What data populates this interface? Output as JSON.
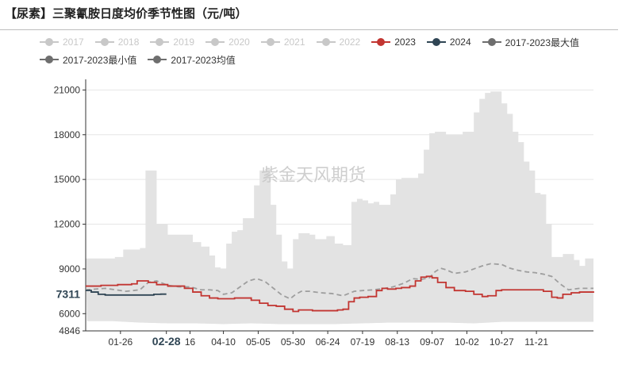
{
  "title": "【尿素】三聚氰胺日度均价季节性图（元/吨）",
  "legend": [
    {
      "label": "2017",
      "color": "#c8c8c8",
      "active": false
    },
    {
      "label": "2018",
      "color": "#c8c8c8",
      "active": false
    },
    {
      "label": "2019",
      "color": "#c8c8c8",
      "active": false
    },
    {
      "label": "2020",
      "color": "#c8c8c8",
      "active": false
    },
    {
      "label": "2021",
      "color": "#c8c8c8",
      "active": false
    },
    {
      "label": "2022",
      "color": "#c8c8c8",
      "active": false
    },
    {
      "label": "2023",
      "color": "#c23531",
      "active": true
    },
    {
      "label": "2024",
      "color": "#2f4554",
      "active": true
    },
    {
      "label": "2017-2023最大值",
      "color": "#6e6e6e",
      "active": true
    },
    {
      "label": "2017-2023最小值",
      "color": "#6e6e6e",
      "active": true
    },
    {
      "label": "2017-2023均值",
      "color": "#6e6e6e",
      "active": true
    }
  ],
  "watermark": "紫金天风期货",
  "chart_data": {
    "type": "line",
    "title": "【尿素】三聚氰胺日度均价季节性图（元/吨）",
    "xlabel": "",
    "ylabel": "",
    "ylim": [
      4846,
      21500
    ],
    "yticks": [
      4846,
      6000,
      9000,
      12000,
      15000,
      18000,
      21000
    ],
    "xlim_days": [
      1,
      366
    ],
    "x_ticks": [
      {
        "day": 26,
        "label": "01-26"
      },
      {
        "day": 59,
        "label": "02-28",
        "bold": true
      },
      {
        "day": 76,
        "label": "16"
      },
      {
        "day": 100,
        "label": "04-10"
      },
      {
        "day": 125,
        "label": "05-05"
      },
      {
        "day": 150,
        "label": "05-30"
      },
      {
        "day": 175,
        "label": "06-24"
      },
      {
        "day": 200,
        "label": "07-19"
      },
      {
        "day": 225,
        "label": "08-13"
      },
      {
        "day": 250,
        "label": "09-07"
      },
      {
        "day": 275,
        "label": "10-02"
      },
      {
        "day": 300,
        "label": "10-27"
      },
      {
        "day": 325,
        "label": "11-21"
      }
    ],
    "current_value_label": "7311",
    "current_value": 7311,
    "grid": true,
    "series": [
      {
        "name": "2017-2023最大值",
        "kind": "upper_band",
        "x": [
          1,
          8,
          15,
          22,
          28,
          32,
          36,
          40,
          44,
          48,
          52,
          60,
          66,
          72,
          78,
          84,
          90,
          94,
          98,
          102,
          106,
          110,
          114,
          118,
          122,
          126,
          130,
          134,
          138,
          142,
          146,
          150,
          154,
          158,
          162,
          166,
          170,
          174,
          180,
          186,
          192,
          196,
          200,
          204,
          208,
          212,
          216,
          220,
          224,
          228,
          232,
          236,
          240,
          244,
          248,
          252,
          256,
          260,
          264,
          268,
          272,
          276,
          280,
          284,
          288,
          292,
          296,
          300,
          304,
          308,
          312,
          316,
          320,
          324,
          328,
          332,
          336,
          340,
          344,
          348,
          352,
          356,
          360,
          366
        ],
        "y": [
          9700,
          9700,
          9700,
          9800,
          10300,
          10300,
          10300,
          10400,
          15600,
          15600,
          12000,
          11300,
          11300,
          11300,
          10800,
          10500,
          9900,
          9100,
          9000,
          10700,
          11500,
          11600,
          12400,
          12400,
          14600,
          15600,
          15700,
          13300,
          11300,
          9500,
          9000,
          11000,
          11400,
          11400,
          11300,
          11000,
          11000,
          11200,
          10700,
          10600,
          13500,
          13700,
          13600,
          13400,
          13500,
          13300,
          13300,
          14000,
          15000,
          15100,
          15100,
          15100,
          15400,
          17000,
          18100,
          18200,
          18200,
          18000,
          18000,
          18000,
          18200,
          18200,
          19500,
          20400,
          20800,
          20900,
          20900,
          20100,
          19400,
          18200,
          17500,
          16200,
          15600,
          14100,
          14000,
          12000,
          9800,
          9800,
          10000,
          10000,
          9600,
          9200,
          9700,
          9700
        ]
      },
      {
        "name": "2017-2023最小值",
        "kind": "lower_band",
        "x": [
          1,
          20,
          40,
          60,
          80,
          100,
          120,
          140,
          160,
          180,
          200,
          220,
          240,
          260,
          280,
          300,
          320,
          340,
          366
        ],
        "y": [
          5500,
          5500,
          5400,
          5350,
          5350,
          5300,
          5350,
          5300,
          5300,
          5300,
          5350,
          5400,
          5400,
          5400,
          5350,
          5450,
          5450,
          5450,
          5450
        ]
      },
      {
        "name": "2017-2023均值",
        "kind": "dashed",
        "x": [
          1,
          15,
          30,
          40,
          46,
          52,
          60,
          68,
          76,
          84,
          90,
          96,
          100,
          106,
          112,
          118,
          124,
          130,
          136,
          142,
          148,
          152,
          156,
          162,
          170,
          178,
          186,
          194,
          200,
          208,
          216,
          222,
          230,
          236,
          242,
          248,
          252,
          256,
          260,
          266,
          274,
          280,
          286,
          292,
          300,
          306,
          312,
          318,
          324,
          330,
          336,
          342,
          348,
          356,
          366
        ],
        "y": [
          7600,
          7700,
          7500,
          7600,
          8100,
          8200,
          7900,
          7800,
          7800,
          7600,
          7600,
          7550,
          7300,
          7400,
          7800,
          8200,
          8350,
          8150,
          7700,
          7250,
          7000,
          7300,
          7500,
          7500,
          7400,
          7350,
          7200,
          7500,
          7550,
          7600,
          7700,
          7800,
          8050,
          8350,
          8300,
          8400,
          8800,
          9050,
          8950,
          8700,
          8800,
          9000,
          9200,
          9350,
          9300,
          9050,
          8900,
          8800,
          8750,
          8650,
          8500,
          8000,
          7600,
          7700,
          7700
        ]
      },
      {
        "name": "2023",
        "kind": "solid",
        "color": "#c23531",
        "x": [
          1,
          12,
          24,
          34,
          38,
          46,
          52,
          60,
          66,
          72,
          78,
          84,
          90,
          96,
          102,
          108,
          114,
          120,
          126,
          132,
          138,
          144,
          150,
          154,
          158,
          164,
          170,
          176,
          182,
          186,
          190,
          194,
          198,
          204,
          210,
          214,
          218,
          224,
          228,
          234,
          238,
          242,
          246,
          250,
          254,
          260,
          266,
          274,
          280,
          286,
          290,
          296,
          300,
          306,
          312,
          318,
          324,
          330,
          336,
          340,
          344,
          350,
          356,
          366
        ],
        "y": [
          7850,
          7900,
          7950,
          8000,
          8200,
          8100,
          7950,
          7850,
          7850,
          7700,
          7450,
          7200,
          7050,
          7000,
          7000,
          7050,
          7050,
          6900,
          6700,
          6550,
          6500,
          6300,
          6150,
          6250,
          6250,
          6200,
          6200,
          6200,
          6250,
          6300,
          6800,
          7050,
          7100,
          7150,
          7550,
          7700,
          7650,
          7700,
          7750,
          7850,
          8200,
          8450,
          8500,
          8400,
          8100,
          7750,
          7550,
          7500,
          7300,
          7150,
          7200,
          7550,
          7600,
          7600,
          7600,
          7600,
          7600,
          7500,
          7100,
          7050,
          7300,
          7400,
          7450,
          7500
        ]
      },
      {
        "name": "2024",
        "kind": "solid",
        "color": "#2f4554",
        "x": [
          1,
          5,
          10,
          15,
          20,
          30,
          40,
          50,
          55,
          59
        ],
        "y": [
          7560,
          7450,
          7300,
          7250,
          7250,
          7250,
          7250,
          7300,
          7311,
          7311
        ]
      }
    ]
  }
}
